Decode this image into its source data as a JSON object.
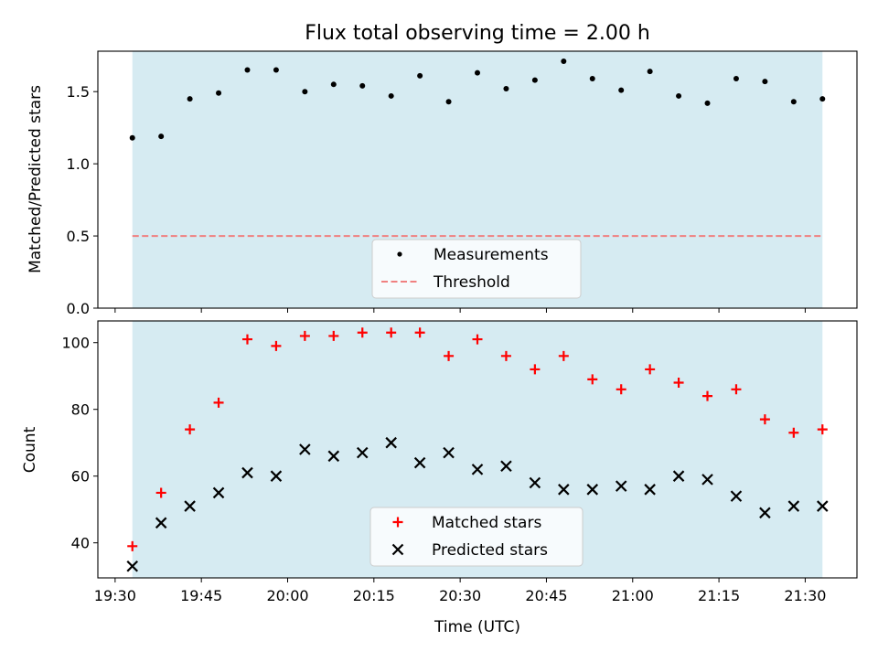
{
  "title": "Flux total observing time = 2.00 h",
  "colors": {
    "shade": "#add8e6",
    "threshold": "#f08080",
    "matched": "#ff0000",
    "predicted": "#000000",
    "measurements": "#000000"
  },
  "chart_data": [
    {
      "type": "scatter",
      "ylabel": "Matched/Predicted stars",
      "xlim": [
        "19:27",
        "21:39"
      ],
      "ylim": [
        0,
        1.78
      ],
      "yticks": [
        "0.0",
        "0.5",
        "1.0",
        "1.5"
      ],
      "ytick_values": [
        0,
        0.5,
        1.0,
        1.5
      ],
      "shaded_span": [
        "19:33",
        "21:33"
      ],
      "threshold": 0.5,
      "legend_position": "lower center",
      "x": [
        "19:33",
        "19:38",
        "19:43",
        "19:48",
        "19:53",
        "19:58",
        "20:03",
        "20:08",
        "20:13",
        "20:18",
        "20:23",
        "20:28",
        "20:33",
        "20:38",
        "20:43",
        "20:48",
        "20:53",
        "20:58",
        "21:03",
        "21:08",
        "21:13",
        "21:18",
        "21:23",
        "21:28",
        "21:33"
      ],
      "series": [
        {
          "name": "Measurements",
          "marker": "dot",
          "values": [
            1.18,
            1.19,
            1.45,
            1.49,
            1.65,
            1.65,
            1.5,
            1.55,
            1.54,
            1.47,
            1.61,
            1.43,
            1.63,
            1.52,
            1.58,
            1.71,
            1.59,
            1.51,
            1.64,
            1.47,
            1.42,
            1.59,
            1.57,
            1.43,
            1.45
          ]
        },
        {
          "name": "Threshold",
          "marker": "dashed-line",
          "values": [
            0.5
          ]
        }
      ]
    },
    {
      "type": "scatter",
      "ylabel": "Count",
      "xlabel": "Time (UTC)",
      "xlim": [
        "19:27",
        "21:39"
      ],
      "ylim": [
        29.5,
        106.5
      ],
      "yticks": [
        "40",
        "60",
        "80",
        "100"
      ],
      "ytick_values": [
        40,
        60,
        80,
        100
      ],
      "xticks": [
        "19:30",
        "19:45",
        "20:00",
        "20:15",
        "20:30",
        "20:45",
        "21:00",
        "21:15",
        "21:30"
      ],
      "shaded_span": [
        "19:33",
        "21:33"
      ],
      "legend_position": "lower center",
      "x": [
        "19:33",
        "19:38",
        "19:43",
        "19:48",
        "19:53",
        "19:58",
        "20:03",
        "20:08",
        "20:13",
        "20:18",
        "20:23",
        "20:28",
        "20:33",
        "20:38",
        "20:43",
        "20:48",
        "20:53",
        "20:58",
        "21:03",
        "21:08",
        "21:13",
        "21:18",
        "21:23",
        "21:28",
        "21:33"
      ],
      "series": [
        {
          "name": "Matched stars",
          "marker": "plus",
          "values": [
            39,
            55,
            74,
            82,
            101,
            99,
            102,
            102,
            103,
            103,
            103,
            96,
            101,
            96,
            92,
            96,
            89,
            86,
            92,
            88,
            84,
            86,
            77,
            73,
            74
          ]
        },
        {
          "name": "Predicted stars",
          "marker": "x",
          "values": [
            33,
            46,
            51,
            55,
            61,
            60,
            68,
            66,
            67,
            70,
            64,
            67,
            62,
            63,
            58,
            56,
            56,
            57,
            56,
            60,
            59,
            54,
            49,
            51,
            51
          ]
        }
      ]
    }
  ]
}
